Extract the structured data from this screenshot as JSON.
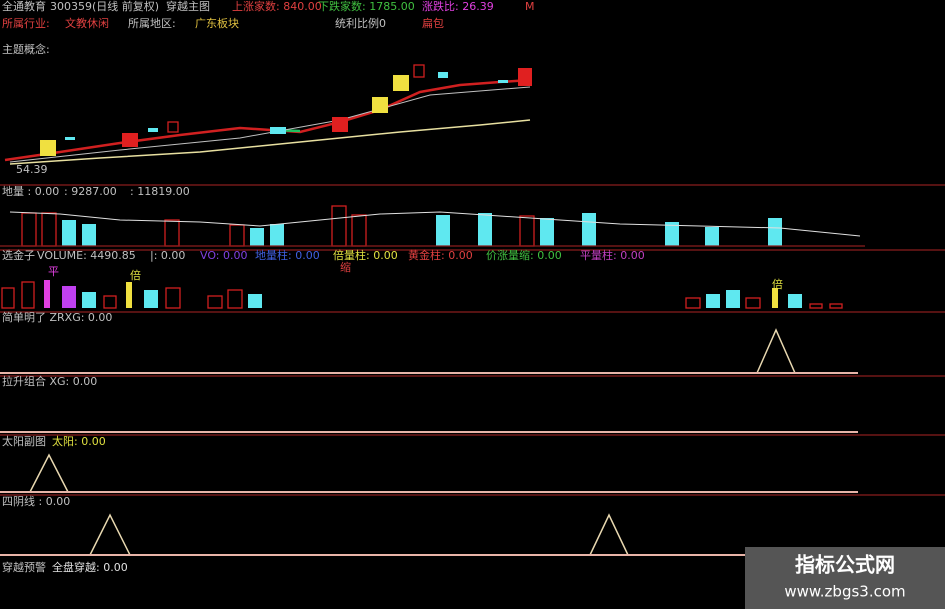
{
  "header": {
    "name": "全通教育",
    "code": "300359(日线 前复权)",
    "indicator": "穿越主图",
    "up_label": "上涨家数: 840.00",
    "down_label": "下跌家数: 1785.00",
    "ratio_label": "涨跌比: 26.39",
    "m": "M"
  },
  "info": {
    "industry_label": "所属行业:",
    "industry": "文教休闲",
    "region_label": "所属地区:",
    "region": "广东板块",
    "profit": "统利比例0",
    "extra": "扁包",
    "concept": "主题概念:",
    "low_price": "54.39"
  },
  "panels": [
    {
      "label": "地量 : 0.00",
      "items": [
        ": 9287.00",
        ": 11819.00"
      ]
    },
    {
      "label": "选金子",
      "items": [
        "VOLUME: 4490.85",
        "|: 0.00",
        "VO: 0.00",
        "地量柱: 0.00",
        "倍量柱: 0.00",
        "黄金柱: 0.00",
        "价涨量缩: 0.00",
        "平量柱: 0.00"
      ],
      "marks": [
        "平",
        "倍",
        "缩",
        "倍"
      ]
    },
    {
      "label": "简单明了 ZRXG: 0.00"
    },
    {
      "label": "拉升组合 XG: 0.00"
    },
    {
      "label": "太阳副图",
      "items": [
        "太阳: 0.00"
      ]
    },
    {
      "label": "四阴线 : 0.00"
    },
    {
      "label": "穿越预警",
      "items": [
        "全盘穿越: 0.00"
      ]
    }
  ],
  "watermark": {
    "title": "指标公式网",
    "url": "www.zbgs3.com"
  }
}
